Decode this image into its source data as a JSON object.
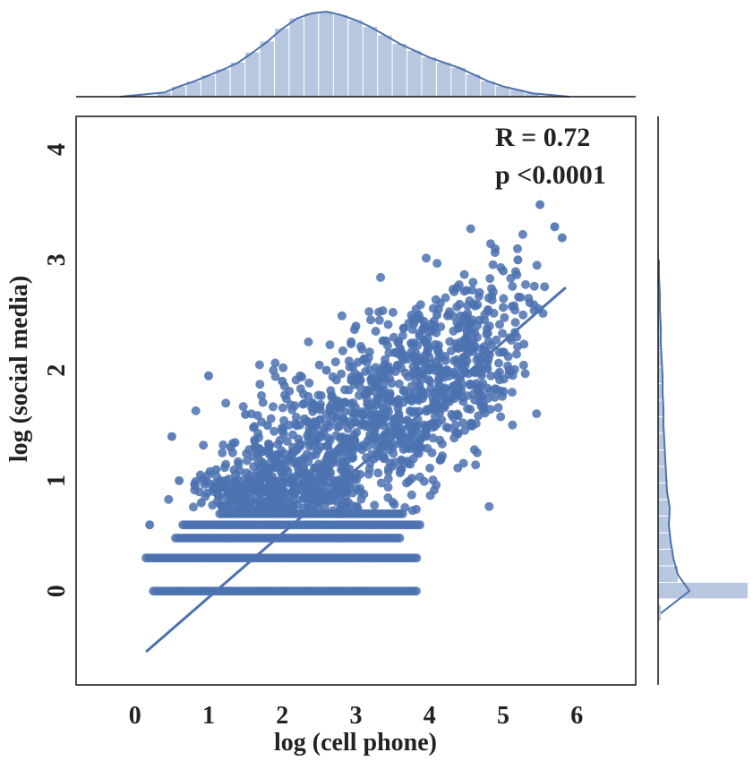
{
  "chart_data": {
    "type": "scatter",
    "title": "",
    "xlabel": "log (cell phone)",
    "ylabel": "log (social media)",
    "xlim": [
      -0.8,
      6.8
    ],
    "ylim": [
      -0.85,
      4.3
    ],
    "xticks": [
      "0",
      "1",
      "2",
      "3",
      "4",
      "5",
      "6"
    ],
    "yticks": [
      "0",
      "1",
      "2",
      "3",
      "4"
    ],
    "annotations": {
      "r": "R = 0.72",
      "p": "p <0.0001"
    },
    "grid": false,
    "color": "#4c72b0",
    "regression_line": {
      "x": [
        0.15,
        5.85
      ],
      "y": [
        -0.55,
        2.75
      ]
    },
    "scatter_sample": {
      "x": [
        0.2,
        0.5,
        0.6,
        0.9,
        1.0,
        1.1,
        1.3,
        1.5,
        1.6,
        1.8,
        2.0,
        2.1,
        2.3,
        2.5,
        2.6,
        2.8,
        3.0,
        3.1,
        3.3,
        3.5,
        3.6,
        3.8,
        4.0,
        4.1,
        4.3,
        4.5,
        4.6,
        4.8,
        5.0,
        5.2,
        5.5,
        5.7,
        5.8
      ],
      "y": [
        0.6,
        1.4,
        1.0,
        0.8,
        1.95,
        1.1,
        1.3,
        1.6,
        1.0,
        1.5,
        1.9,
        1.2,
        1.7,
        1.4,
        2.0,
        1.1,
        2.4,
        1.6,
        1.9,
        1.3,
        2.2,
        1.8,
        2.0,
        2.5,
        1.6,
        2.3,
        2.6,
        2.1,
        2.9,
        3.0,
        3.5,
        3.3,
        3.2
      ]
    },
    "banded_rows": [
      {
        "y": 0.0,
        "x_range": [
          0.25,
          3.85
        ]
      },
      {
        "y": 0.3,
        "x_range": [
          0.15,
          3.85
        ]
      },
      {
        "y": 0.48,
        "x_range": [
          0.55,
          3.6
        ]
      },
      {
        "y": 0.6,
        "x_range": [
          0.65,
          3.9
        ]
      },
      {
        "y": 0.7,
        "x_range": [
          1.15,
          3.65
        ]
      }
    ],
    "top_marginal": {
      "type": "histogram",
      "bins_x": [
        0.4,
        0.6,
        0.8,
        1.0,
        1.2,
        1.4,
        1.6,
        1.8,
        2.0,
        2.2,
        2.4,
        2.6,
        2.8,
        3.0,
        3.2,
        3.4,
        3.6,
        3.8,
        4.0,
        4.2,
        4.4,
        4.6,
        4.8,
        5.0,
        5.2,
        5.4
      ],
      "density": [
        0.05,
        0.12,
        0.18,
        0.25,
        0.32,
        0.4,
        0.52,
        0.65,
        0.8,
        0.92,
        0.98,
        1.0,
        0.96,
        0.9,
        0.82,
        0.72,
        0.62,
        0.54,
        0.46,
        0.4,
        0.34,
        0.26,
        0.18,
        0.12,
        0.08,
        0.04
      ]
    },
    "right_marginal": {
      "type": "histogram",
      "bins_y": [
        -0.2,
        0.0,
        0.15,
        0.3,
        0.45,
        0.6,
        0.75,
        0.9,
        1.05,
        1.2,
        1.35,
        1.5,
        1.65,
        1.8,
        1.95,
        2.1,
        2.25,
        2.4,
        2.55,
        2.7,
        2.85,
        3.0
      ],
      "density": [
        0.03,
        1.0,
        0.22,
        0.17,
        0.14,
        0.12,
        0.13,
        0.1,
        0.09,
        0.08,
        0.07,
        0.06,
        0.06,
        0.05,
        0.05,
        0.04,
        0.03,
        0.03,
        0.02,
        0.02,
        0.01,
        0.01
      ]
    }
  }
}
